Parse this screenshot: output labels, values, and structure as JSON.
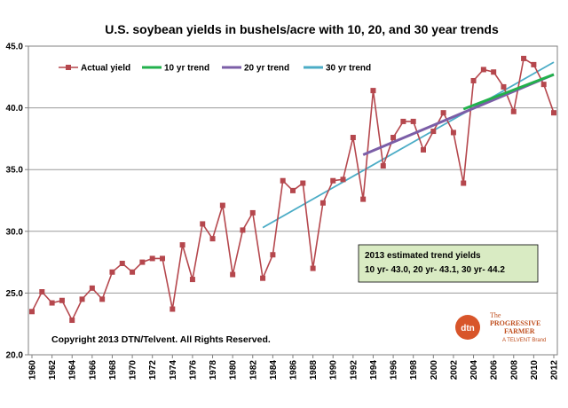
{
  "chart_data": {
    "type": "line",
    "title": "U.S. soybean yields in bushels/acre with 10, 20, and 30 year trends",
    "xlabel": "",
    "ylabel": "",
    "ylim": [
      20,
      45
    ],
    "yticks": [
      "20.0",
      "25.0",
      "30.0",
      "35.0",
      "40.0",
      "45.0"
    ],
    "xlim": [
      1960,
      2012
    ],
    "xticks": [
      "1960",
      "1962",
      "1964",
      "1966",
      "1968",
      "1970",
      "1972",
      "1974",
      "1976",
      "1978",
      "1980",
      "1982",
      "1984",
      "1986",
      "1988",
      "1990",
      "1992",
      "1994",
      "1996",
      "1998",
      "2000",
      "2002",
      "2004",
      "2006",
      "2008",
      "2010",
      "2012"
    ],
    "grid": "horizontal",
    "legend_position": "top-left",
    "series": [
      {
        "name": "Actual yield",
        "color": "#b5474d",
        "marker": "square",
        "x": [
          1960,
          1961,
          1962,
          1963,
          1964,
          1965,
          1966,
          1967,
          1968,
          1969,
          1970,
          1971,
          1972,
          1973,
          1974,
          1975,
          1976,
          1977,
          1978,
          1979,
          1980,
          1981,
          1982,
          1983,
          1984,
          1985,
          1986,
          1987,
          1988,
          1989,
          1990,
          1991,
          1992,
          1993,
          1994,
          1995,
          1996,
          1997,
          1998,
          1999,
          2000,
          2001,
          2002,
          2003,
          2004,
          2005,
          2006,
          2007,
          2008,
          2009,
          2010,
          2011,
          2012
        ],
        "y": [
          23.5,
          25.1,
          24.2,
          24.4,
          22.8,
          24.5,
          25.4,
          24.5,
          26.7,
          27.4,
          26.7,
          27.5,
          27.8,
          27.8,
          23.7,
          28.9,
          26.1,
          30.6,
          29.4,
          32.1,
          26.5,
          30.1,
          31.5,
          26.2,
          28.1,
          34.1,
          33.3,
          33.9,
          27.0,
          32.3,
          34.1,
          34.2,
          37.6,
          32.6,
          41.4,
          35.3,
          37.6,
          38.9,
          38.9,
          36.6,
          38.1,
          39.6,
          38.0,
          33.9,
          42.2,
          43.1,
          42.9,
          41.7,
          39.7,
          44.0,
          43.5,
          41.9,
          39.6
        ]
      },
      {
        "name": "10 yr trend",
        "color": "#22b14c",
        "x": [
          2003,
          2012
        ],
        "y": [
          39.9,
          42.7
        ]
      },
      {
        "name": "20 yr trend",
        "color": "#7b5ea7",
        "x": [
          1993,
          2012
        ],
        "y": [
          36.2,
          42.7
        ]
      },
      {
        "name": "30 yr trend",
        "color": "#4bacc6",
        "x": [
          1983,
          2012
        ],
        "y": [
          30.3,
          43.7
        ]
      }
    ],
    "annotations": {
      "note_line1": "2013 estimated trend yields",
      "note_line2": "10 yr- 43.0, 20 yr- 43.1, 30 yr- 44.2",
      "copyright": "Copyright 2013 DTN/Telvent. All Rights Reserved."
    }
  },
  "logo": {
    "badge": "dtn",
    "line1": "The",
    "line2": "PROGRESSIVE",
    "line3": "FARMER",
    "line4": "A TELVENT Brand",
    "color": "#c05020"
  }
}
